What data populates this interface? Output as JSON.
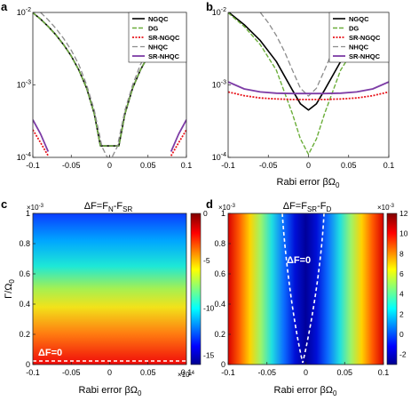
{
  "figure": {
    "panel_labels": [
      "a",
      "b",
      "c",
      "d"
    ],
    "legend_labels": [
      "NGQC",
      "DG",
      "SR-NGQC",
      "NHQC",
      "SR-NHQC"
    ],
    "colors": {
      "NGQC": "#000000",
      "DG": "#6bae3a",
      "SR-NGQC": "#e8141b",
      "NHQC": "#8c8c8c",
      "SR-NHQC": "#7d3ca6"
    },
    "xlabel_text": "Rabi error βΩ",
    "xlabel_sub": "0",
    "ylabel_text": "Γ/Ω",
    "ylabel_sub": "0",
    "c_title": "ΔF=F",
    "c_title_s1": "N",
    "c_title_mid": "-F",
    "c_title_s2": "SR",
    "d_title": "ΔF=F",
    "d_title_s1": "SR",
    "d_title_mid": "-F",
    "d_title_s2": "D",
    "delta_label": "ΔF=0",
    "exp_label": "×10",
    "exp_c": "-3",
    "exp_d_y": "-3",
    "exp_d_cb": "-3",
    "exp_c_cb": "-4"
  },
  "chart_data": [
    {
      "panel": "a",
      "type": "line",
      "xlabel": "Rabi error βΩ0",
      "yscale": "log",
      "ylim": [
        0.0001,
        0.01
      ],
      "xlim": [
        -0.1,
        0.1
      ],
      "xticks": [
        "-0.1",
        "-0.05",
        "0",
        "0.05",
        "0.1"
      ],
      "yticks": [
        "10-4",
        "10-3",
        "10-2"
      ],
      "legend": "top-right",
      "x": [
        -0.1,
        -0.09,
        -0.08,
        -0.07,
        -0.06,
        -0.05,
        -0.04,
        -0.03,
        -0.02,
        -0.012,
        0.012,
        0.02,
        0.03,
        0.04,
        0.05,
        0.06,
        0.07,
        0.08,
        0.09,
        0.1
      ],
      "series": [
        {
          "name": "NGQC",
          "values": [
            0.0099,
            0.0081,
            0.0064,
            0.0049,
            0.0036,
            0.0025,
            0.0016,
            0.0009,
            0.0004,
            0.000144,
            0.000144,
            0.0004,
            0.0009,
            0.0016,
            0.0025,
            0.0036,
            0.0049,
            0.0064,
            0.0081,
            0.0099
          ]
        },
        {
          "name": "DG",
          "values": [
            0.0099,
            0.0081,
            0.0064,
            0.0049,
            0.0036,
            0.0025,
            0.0016,
            0.0009,
            0.0004,
            0.000144,
            0.000144,
            0.0004,
            0.0009,
            0.0016,
            0.0025,
            0.0036,
            0.0049,
            0.0064,
            0.0081,
            0.0099
          ]
        },
        {
          "name": "SR-NGQC",
          "values": [
            0.00024,
            0.00016,
            0.000105,
            null,
            null,
            null,
            null,
            null,
            null,
            null,
            null,
            null,
            null,
            null,
            null,
            null,
            null,
            0.000105,
            0.00016,
            0.00024
          ]
        },
        {
          "name": "NHQC",
          "x": [
            -0.09,
            -0.08,
            -0.07,
            -0.06,
            -0.05,
            -0.04,
            -0.03,
            -0.02,
            -0.01,
            -0.003,
            0.003,
            0.01,
            0.02,
            0.03,
            0.04,
            0.05,
            0.06,
            0.07,
            0.08,
            0.09
          ],
          "values": [
            0.01,
            0.0079,
            0.006,
            0.0044,
            0.003,
            0.0019,
            0.001,
            0.00045,
            0.00014,
            0.0001,
            0.0001,
            0.00014,
            0.00045,
            0.001,
            0.0019,
            0.003,
            0.0044,
            0.006,
            0.0079,
            0.01
          ]
        },
        {
          "name": "SR-NHQC",
          "values": [
            0.00033,
            0.00021,
            0.00012,
            null,
            null,
            null,
            null,
            null,
            null,
            null,
            null,
            null,
            null,
            null,
            null,
            null,
            null,
            0.00012,
            0.00021,
            0.00033
          ]
        }
      ]
    },
    {
      "panel": "b",
      "type": "line",
      "xlabel": "Rabi error βΩ0",
      "yscale": "log",
      "ylim": [
        0.0001,
        0.01
      ],
      "xlim": [
        -0.1,
        0.1
      ],
      "xticks": [
        "-0.1",
        "-0.05",
        "0",
        "0.05",
        "0.1"
      ],
      "yticks": [
        "10-4",
        "10-3",
        "10-2"
      ],
      "legend": "top-right",
      "x": [
        -0.1,
        -0.08,
        -0.06,
        -0.04,
        -0.02,
        -0.01,
        0,
        0.01,
        0.02,
        0.04,
        0.06,
        0.08,
        0.1
      ],
      "series": [
        {
          "name": "NGQC",
          "values": [
            0.0102,
            0.0068,
            0.0041,
            0.0021,
            0.00085,
            0.00055,
            0.00045,
            0.00055,
            0.00085,
            0.0021,
            0.0041,
            0.0068,
            0.0102
          ]
        },
        {
          "name": "DG",
          "values": [
            0.0099,
            0.0064,
            0.0036,
            0.0016,
            0.0004,
            0.00018,
            0.00011,
            0.00018,
            0.0004,
            0.0016,
            0.0036,
            0.0064,
            0.0099
          ]
        },
        {
          "name": "SR-NGQC",
          "values": [
            0.0008,
            0.00071,
            0.00066,
            0.00064,
            0.00063,
            0.00063,
            0.00063,
            0.00063,
            0.00063,
            0.00064,
            0.00066,
            0.00071,
            0.0008
          ]
        },
        {
          "name": "NHQC",
          "x": [
            -0.06,
            -0.05,
            -0.04,
            -0.03,
            -0.02,
            -0.01,
            0,
            0.01,
            0.02,
            0.03,
            0.04,
            0.05,
            0.06
          ],
          "values": [
            0.01,
            0.0072,
            0.0048,
            0.0029,
            0.0016,
            0.0009,
            0.0007,
            0.0009,
            0.0016,
            0.0029,
            0.0048,
            0.0072,
            0.01
          ]
        },
        {
          "name": "SR-NHQC",
          "values": [
            0.0011,
            0.00088,
            0.0008,
            0.00077,
            0.00076,
            0.00076,
            0.00076,
            0.00076,
            0.00076,
            0.00077,
            0.0008,
            0.00088,
            0.0011
          ]
        }
      ]
    },
    {
      "panel": "c",
      "type": "heatmap",
      "title": "ΔF=FN-FSR",
      "xlabel": "Rabi error βΩ0",
      "ylabel": "Γ/Ω0",
      "xlim": [
        -0.1,
        0.1
      ],
      "ylim": [
        0,
        0.001
      ],
      "xticks": [
        "-0.1",
        "-0.05",
        "0",
        "0.05",
        "0.1"
      ],
      "yticks": [
        "0",
        "0.2",
        "0.4",
        "0.6",
        "0.8",
        "1"
      ],
      "y_exponent": "×10-3",
      "colorbar": {
        "range": [
          -16,
          0
        ],
        "ticks": [
          "0",
          "-5",
          "-10",
          "-15"
        ],
        "exponent": "×10-4"
      },
      "contour_label": "ΔF=0"
    },
    {
      "panel": "d",
      "type": "heatmap",
      "title": "ΔF=FSR-FD",
      "xlabel": "Rabi error βΩ0",
      "ylabel": "",
      "xlim": [
        -0.1,
        0.1
      ],
      "ylim": [
        0,
        0.001
      ],
      "xticks": [
        "-0.1",
        "-0.05",
        "0",
        "0.05",
        "0.1"
      ],
      "yticks": [
        "0",
        "0.2",
        "0.4",
        "0.6",
        "0.8",
        "1"
      ],
      "y_exponent": "×10-3",
      "colorbar": {
        "range": [
          -3,
          12
        ],
        "ticks": [
          "12",
          "10",
          "8",
          "6",
          "4",
          "2",
          "0",
          "-2"
        ],
        "exponent": "×10-3"
      },
      "contour_label": "ΔF=0"
    }
  ]
}
